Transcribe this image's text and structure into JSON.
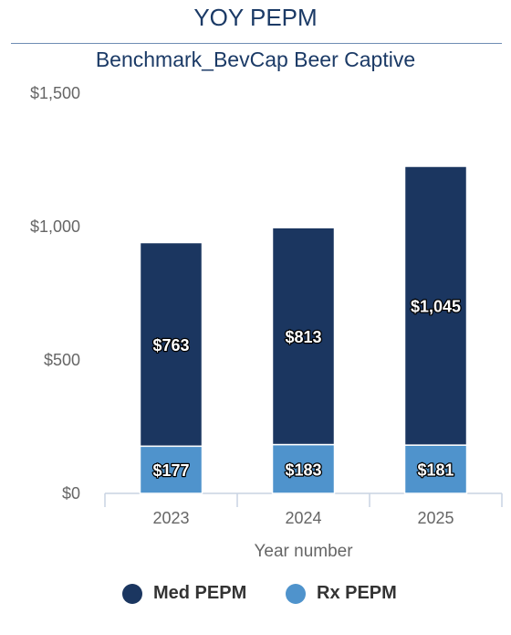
{
  "title": "YOY PEPM",
  "subtitle": "Benchmark_BevCap Beer Captive",
  "colors": {
    "med": "#1b3660",
    "rx": "#4f93cc",
    "title": "#1b3a66"
  },
  "chart_data": {
    "type": "bar",
    "stacked": true,
    "categories": [
      "2023",
      "2024",
      "2025"
    ],
    "series": [
      {
        "name": "Rx PEPM",
        "values": [
          177,
          183,
          181
        ],
        "labels": [
          "$177",
          "$183",
          "$181"
        ]
      },
      {
        "name": "Med PEPM",
        "values": [
          763,
          813,
          1045
        ],
        "labels": [
          "$763",
          "$813",
          "$1,045"
        ]
      }
    ],
    "xlabel": "Year number",
    "ylabel": "",
    "ylim": [
      0,
      1500
    ],
    "yticks": [
      {
        "value": 0,
        "label": "$0"
      },
      {
        "value": 500,
        "label": "$500"
      },
      {
        "value": 1000,
        "label": "$1,000"
      },
      {
        "value": 1500,
        "label": "$1,500"
      }
    ],
    "grid": false,
    "legend_position": "bottom"
  },
  "legend": [
    {
      "label": "Med PEPM",
      "color": "#1b3660"
    },
    {
      "label": "Rx PEPM",
      "color": "#4f93cc"
    }
  ]
}
